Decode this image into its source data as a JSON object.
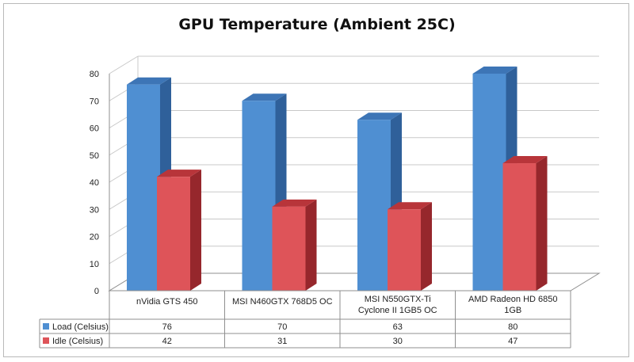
{
  "chart_data": {
    "type": "bar",
    "title": "GPU Temperature (Ambient 25C)",
    "categories": [
      [
        "nVidia GTS 450"
      ],
      [
        "MSI N460GTX 768D5 OC"
      ],
      [
        "MSI N550GTX-Ti",
        "Cyclone II 1GB5 OC"
      ],
      [
        "AMD Radeon HD 6850",
        "1GB"
      ]
    ],
    "series": [
      {
        "name": "Load (Celsius)",
        "values": [
          76,
          70,
          63,
          80
        ],
        "color": "#4f8fd2",
        "side_color": "#2f609a",
        "top_color": "#3d75b6"
      },
      {
        "name": "Idle (Celsius)",
        "values": [
          42,
          31,
          30,
          47
        ],
        "color": "#de5459",
        "side_color": "#96272c",
        "top_color": "#b8353a"
      }
    ],
    "ylim": [
      0,
      80
    ],
    "yticks": [
      0,
      10,
      20,
      30,
      40,
      50,
      60,
      70,
      80
    ],
    "grid": true,
    "legend": "data-table"
  }
}
